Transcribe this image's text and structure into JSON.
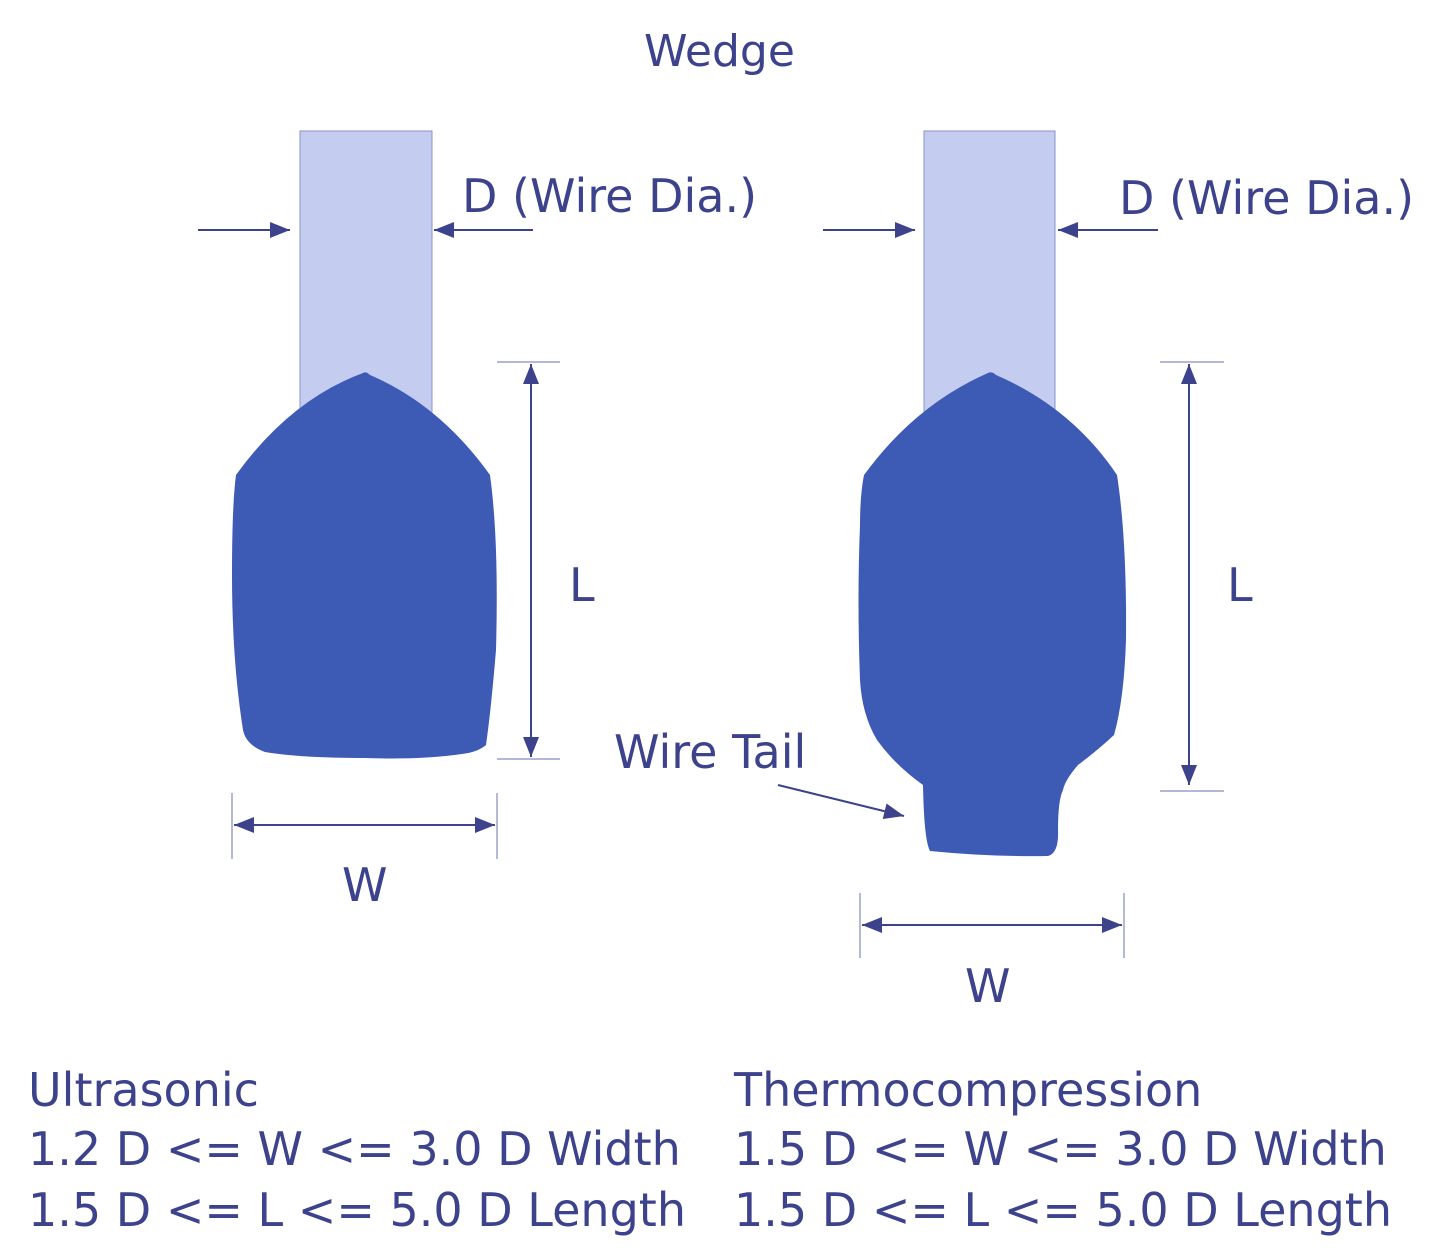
{
  "title": "Wedge",
  "colors": {
    "wire": "#c4ccf0",
    "bond": "#3d5ab5",
    "line": "#3d428c"
  },
  "left_diagram": {
    "wire_label": "D (Wire Dia.)",
    "length_label": "L",
    "width_label": "W"
  },
  "right_diagram": {
    "wire_label": "D (Wire Dia.)",
    "length_label": "L",
    "width_label": "W",
    "tail_label": "Wire Tail"
  },
  "ultrasonic": {
    "heading": "Ultrasonic",
    "width_rule": "1.2 D <= W <= 3.0 D Width",
    "length_rule": "1.5 D <= L <= 5.0 D Length"
  },
  "thermocompression": {
    "heading": "Thermocompression",
    "width_rule": "1.5 D <= W <= 3.0 D Width",
    "length_rule": "1.5 D <= L <= 5.0 D Length"
  }
}
